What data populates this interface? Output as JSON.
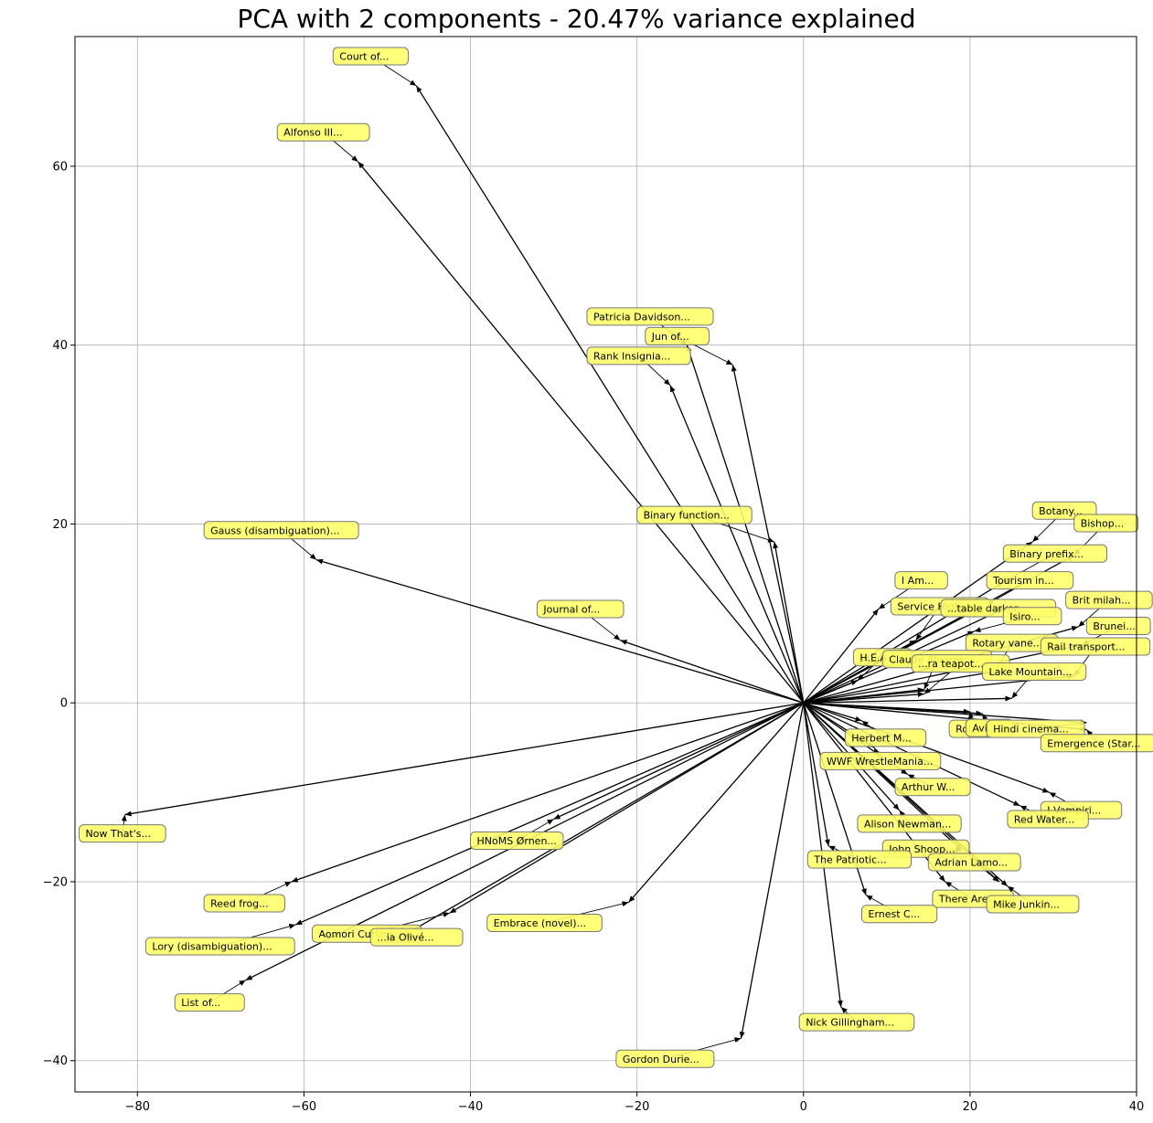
{
  "chart_data": {
    "type": "scatter",
    "title": "PCA with 2 components - 20.47% variance explained",
    "xlabel": "",
    "ylabel": "",
    "xlim": [
      -87.5,
      40
    ],
    "ylim": [
      -43.5,
      74.5
    ],
    "xticks": [
      -80,
      -60,
      -40,
      -20,
      0,
      20,
      40
    ],
    "yticks": [
      -40,
      -20,
      0,
      20,
      40,
      60
    ],
    "grid": true,
    "label_color": "#ffff66",
    "arrow_color": "#000000",
    "points": [
      {
        "label": "Court of...",
        "x": -46.5,
        "y": 69.0,
        "lx": -56.5,
        "ly": 72.3
      },
      {
        "label": "Alfonso III...",
        "x": -53.5,
        "y": 60.5,
        "lx": -63.2,
        "ly": 63.8
      },
      {
        "label": "Patricia Davidson...",
        "x": -14.0,
        "y": 40.0,
        "lx": -26.0,
        "ly": 43.2
      },
      {
        "label": "Jun of...",
        "x": -8.5,
        "y": 37.8,
        "lx": -19.0,
        "ly": 41.0
      },
      {
        "label": "Rank Insignia...",
        "x": -16.0,
        "y": 35.5,
        "lx": -26.0,
        "ly": 38.8
      },
      {
        "label": "Binary function...",
        "x": -3.5,
        "y": 18.0,
        "lx": -20.0,
        "ly": 21.0
      },
      {
        "label": "Gauss (disambiguation)...",
        "x": -58.5,
        "y": 16.0,
        "lx": -72.0,
        "ly": 19.3
      },
      {
        "label": "Journal of...",
        "x": -22.0,
        "y": 7.0,
        "lx": -32.0,
        "ly": 10.5
      },
      {
        "label": "Now That's...",
        "x": -81.5,
        "y": -12.5,
        "lx": -87.0,
        "ly": -14.6
      },
      {
        "label": "HNoMS Ørnen...",
        "x": -30.0,
        "y": -13.0,
        "lx": -40.0,
        "ly": -15.4
      },
      {
        "label": "Reed frog...",
        "x": -61.5,
        "y": -20.0,
        "lx": -72.0,
        "ly": -22.4
      },
      {
        "label": "Lory (disambiguation)...",
        "x": -61.0,
        "y": -24.8,
        "lx": -79.0,
        "ly": -27.2
      },
      {
        "label": "Aomori Curling...",
        "x": -42.5,
        "y": -23.5,
        "lx": -59.0,
        "ly": -25.8
      },
      {
        "label": "...ia Olivé...",
        "x": -48.0,
        "y": -26.0,
        "lx": -52.0,
        "ly": -26.2
      },
      {
        "label": "Embrace (novel)...",
        "x": -21.0,
        "y": -22.3,
        "lx": -38.0,
        "ly": -24.6
      },
      {
        "label": "List of...",
        "x": -67.0,
        "y": -31.0,
        "lx": -75.5,
        "ly": -33.5
      },
      {
        "label": "Gordon Durie...",
        "x": -7.5,
        "y": -37.5,
        "lx": -22.5,
        "ly": -39.8
      },
      {
        "label": "Nick Gillingham...",
        "x": 4.5,
        "y": -34.0,
        "lx": -0.5,
        "ly": -35.7
      },
      {
        "label": "Botany...",
        "x": 27.5,
        "y": 18.0,
        "lx": 27.5,
        "ly": 21.5
      },
      {
        "label": "Bishop...",
        "x": 32.5,
        "y": 16.5,
        "lx": 32.5,
        "ly": 20.1
      },
      {
        "label": "Binary prefix...",
        "x": 24.0,
        "y": 13.5,
        "lx": 24.0,
        "ly": 16.7
      },
      {
        "label": "I Am...",
        "x": 9.0,
        "y": 10.5,
        "lx": 11.0,
        "ly": 13.7
      },
      {
        "label": "Tourism in...",
        "x": 22.0,
        "y": 11.0,
        "lx": 22.0,
        "ly": 13.7
      },
      {
        "label": "Service High...",
        "x": 13.5,
        "y": 7.0,
        "lx": 10.5,
        "ly": 10.8
      },
      {
        "label": "...table darker...",
        "x": 24.0,
        "y": 10.5,
        "lx": 16.5,
        "ly": 10.6
      },
      {
        "label": "Isiro...",
        "x": 20.5,
        "y": 8.0,
        "lx": 24.0,
        "ly": 9.7
      },
      {
        "label": "Brit milah...",
        "x": 33.0,
        "y": 8.5,
        "lx": 31.5,
        "ly": 11.5
      },
      {
        "label": "Brunei...",
        "x": 33.5,
        "y": 6.5,
        "lx": 34.0,
        "ly": 8.6
      },
      {
        "label": "Rotary vane...",
        "x": 23.0,
        "y": 3.5,
        "lx": 19.5,
        "ly": 6.7
      },
      {
        "label": "Rail transport...",
        "x": 32.5,
        "y": 3.0,
        "lx": 28.5,
        "ly": 6.3
      },
      {
        "label": "H.E.A...",
        "x": 6.5,
        "y": 2.5,
        "lx": 6.0,
        "ly": 5.1
      },
      {
        "label": "Claude Alvares...",
        "x": 14.5,
        "y": 1.5,
        "lx": 9.5,
        "ly": 4.9
      },
      {
        "label": "...ra teapot...",
        "x": 14.5,
        "y": 1.0,
        "lx": 13.0,
        "ly": 4.4
      },
      {
        "label": "Lake Mountain...",
        "x": 25.0,
        "y": 0.5,
        "lx": 21.5,
        "ly": 3.5
      },
      {
        "label": "Rol...",
        "x": 20.0,
        "y": -1.0,
        "lx": 17.5,
        "ly": -2.9
      },
      {
        "label": "Avi...",
        "x": 21.5,
        "y": -1.2,
        "lx": 19.5,
        "ly": -2.8
      },
      {
        "label": "Hindi cinema...",
        "x": 34.0,
        "y": -2.2,
        "lx": 22.0,
        "ly": -2.9
      },
      {
        "label": "Emergence (Star...",
        "x": 34.0,
        "y": -3.0,
        "lx": 28.5,
        "ly": -4.5
      },
      {
        "label": "Herbert M...",
        "x": 7.0,
        "y": -2.0,
        "lx": 5.0,
        "ly": -3.9
      },
      {
        "label": "WWF WrestleMania...",
        "x": 8.5,
        "y": -5.0,
        "lx": 2.0,
        "ly": -6.5
      },
      {
        "label": "Arthur W...",
        "x": 12.5,
        "y": -8.0,
        "lx": 11.0,
        "ly": -9.4
      },
      {
        "label": "I Vampiri...",
        "x": 29.5,
        "y": -10.0,
        "lx": 28.5,
        "ly": -12.0
      },
      {
        "label": "Red Water...",
        "x": 26.0,
        "y": -11.5,
        "lx": 24.5,
        "ly": -13.0
      },
      {
        "label": "Alison Newman...",
        "x": 11.5,
        "y": -12.0,
        "lx": 6.5,
        "ly": -13.5
      },
      {
        "label": "John Shoop...",
        "x": 19.0,
        "y": -16.5,
        "lx": 9.5,
        "ly": -16.3
      },
      {
        "label": "The Patriotic...",
        "x": 3.0,
        "y": -16.0,
        "lx": 0.5,
        "ly": -17.5
      },
      {
        "label": "Adrian Lamo...",
        "x": 23.5,
        "y": -20.0,
        "lx": 15.0,
        "ly": -17.8
      },
      {
        "label": "There Are...",
        "x": 17.0,
        "y": -20.0,
        "lx": 15.5,
        "ly": -21.9
      },
      {
        "label": "Mike Junkin...",
        "x": 24.5,
        "y": -20.5,
        "lx": 22.0,
        "ly": -22.5
      },
      {
        "label": "Ernest C...",
        "x": 7.5,
        "y": -21.5,
        "lx": 7.0,
        "ly": -23.6
      }
    ]
  }
}
